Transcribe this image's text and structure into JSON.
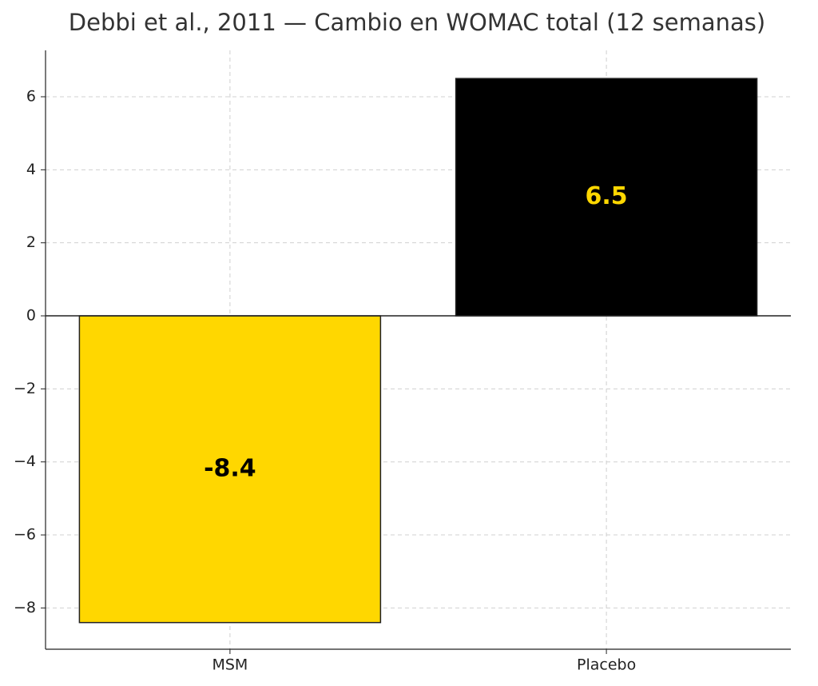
{
  "chart_data": {
    "type": "bar",
    "title": "Debbi et al., 2011 — Cambio en WOMAC total (12 semanas)",
    "categories": [
      "MSM",
      "Placebo"
    ],
    "values": [
      -8.4,
      6.5
    ],
    "colors": [
      "#FFD700",
      "#000000"
    ],
    "edge_color": "#222222",
    "value_label_colors": [
      "#000000",
      "#FFD700"
    ],
    "ylim": [
      -9.13,
      7.27
    ],
    "yticks": [
      {
        "value": -8,
        "label": "−8"
      },
      {
        "value": -6,
        "label": "−6"
      },
      {
        "value": -4,
        "label": "−4"
      },
      {
        "value": -2,
        "label": "−2"
      },
      0,
      2,
      4,
      6
    ],
    "grid": true
  }
}
